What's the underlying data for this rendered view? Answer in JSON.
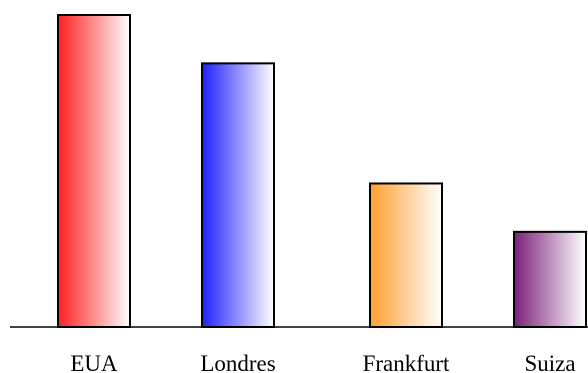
{
  "chart_data": {
    "type": "bar",
    "categories": [
      "EUA",
      "Londres",
      "Frankfurt",
      "Suiza"
    ],
    "values": [
      100,
      84.5,
      46,
      30.5
    ],
    "colors": [
      "#ff1f1f",
      "#1f1fff",
      "#ff9f2f",
      "#7a1f7a"
    ],
    "ylim": [
      0,
      100
    ],
    "title": "",
    "xlabel": "",
    "ylabel": "",
    "grid": false,
    "legend": "none"
  }
}
